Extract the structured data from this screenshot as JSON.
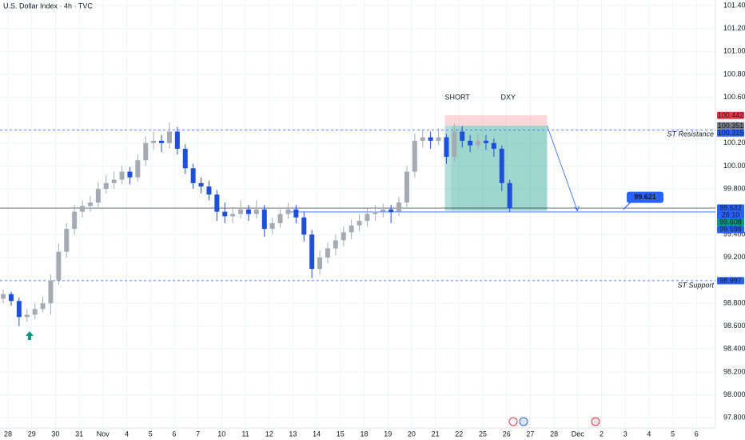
{
  "chart_data": {
    "type": "candlestick",
    "title": "U.S. Dollar Index · 4h · TVC",
    "annotations": [
      {
        "text": "SHORT",
        "color": "#f23645"
      },
      {
        "text": "DXY",
        "color": "#2962ff"
      }
    ],
    "up_color": "#a7aab3",
    "down_color": "#1e4fd8",
    "grid": true,
    "ylim": [
      97.71,
      101.45
    ],
    "yticks": [
      {
        "value": 101.4,
        "label": "101.400"
      },
      {
        "value": 101.2,
        "label": "101.200"
      },
      {
        "value": 101.0,
        "label": "101.000"
      },
      {
        "value": 100.8,
        "label": "100.800"
      },
      {
        "value": 100.6,
        "label": "100.600"
      },
      {
        "value": 100.2,
        "label": "100.200"
      },
      {
        "value": 100.0,
        "label": "100.000"
      },
      {
        "value": 99.8,
        "label": "99.800"
      },
      {
        "value": 99.4,
        "label": "99.400"
      },
      {
        "value": 99.2,
        "label": "99.200"
      },
      {
        "value": 98.8,
        "label": "98.800"
      },
      {
        "value": 98.6,
        "label": "98.600"
      },
      {
        "value": 98.4,
        "label": "98.400"
      },
      {
        "value": 98.2,
        "label": "98.200"
      },
      {
        "value": 98.0,
        "label": "98.000"
      },
      {
        "value": 97.8,
        "label": "97.800"
      }
    ],
    "categories": [
      "28",
      "29",
      "30",
      "31",
      "Nov",
      "4",
      "5",
      "6",
      "7",
      "10",
      "11",
      "12",
      "13",
      "14",
      "15",
      "18",
      "19",
      "20",
      "21",
      "22",
      "25",
      "26",
      "27",
      "28",
      "Dec",
      "2",
      "3",
      "4",
      "5",
      "6"
    ],
    "candles": [
      [
        98.84,
        98.92,
        98.8,
        98.88
      ],
      [
        98.88,
        98.9,
        98.78,
        98.82
      ],
      [
        98.82,
        98.85,
        98.6,
        98.68
      ],
      [
        98.68,
        98.75,
        98.64,
        98.7
      ],
      [
        98.7,
        98.8,
        98.66,
        98.75
      ],
      [
        98.75,
        98.86,
        98.72,
        98.8
      ],
      [
        98.8,
        99.05,
        98.7,
        99.0
      ],
      [
        99.0,
        99.32,
        98.96,
        99.25
      ],
      [
        99.25,
        99.5,
        99.2,
        99.45
      ],
      [
        99.45,
        99.66,
        99.4,
        99.6
      ],
      [
        99.6,
        99.7,
        99.55,
        99.65
      ],
      [
        99.65,
        99.74,
        99.6,
        99.68
      ],
      [
        99.68,
        99.86,
        99.64,
        99.8
      ],
      [
        99.8,
        99.92,
        99.76,
        99.85
      ],
      [
        99.85,
        99.95,
        99.8,
        99.88
      ],
      [
        99.88,
        100.0,
        99.84,
        99.95
      ],
      [
        99.95,
        99.99,
        99.84,
        99.9
      ],
      [
        99.9,
        100.1,
        99.86,
        100.05
      ],
      [
        100.05,
        100.26,
        100.0,
        100.2
      ],
      [
        100.2,
        100.3,
        100.14,
        100.22
      ],
      [
        100.22,
        100.27,
        100.12,
        100.2
      ],
      [
        100.2,
        100.38,
        100.15,
        100.3
      ],
      [
        100.3,
        100.34,
        100.1,
        100.15
      ],
      [
        100.15,
        100.19,
        99.93,
        99.98
      ],
      [
        99.98,
        100.02,
        99.8,
        99.85
      ],
      [
        99.85,
        99.9,
        99.76,
        99.82
      ],
      [
        99.82,
        99.87,
        99.7,
        99.75
      ],
      [
        99.75,
        99.79,
        99.52,
        99.6
      ],
      [
        99.6,
        99.68,
        99.5,
        99.56
      ],
      [
        99.56,
        99.64,
        99.5,
        99.58
      ],
      [
        99.58,
        99.7,
        99.54,
        99.62
      ],
      [
        99.62,
        99.66,
        99.52,
        99.58
      ],
      [
        99.58,
        99.7,
        99.54,
        99.62
      ],
      [
        99.62,
        99.66,
        99.38,
        99.45
      ],
      [
        99.45,
        99.55,
        99.4,
        99.5
      ],
      [
        99.5,
        99.62,
        99.46,
        99.58
      ],
      [
        99.58,
        99.68,
        99.54,
        99.62
      ],
      [
        99.62,
        99.66,
        99.5,
        99.55
      ],
      [
        99.55,
        99.6,
        99.34,
        99.4
      ],
      [
        99.4,
        99.44,
        99.02,
        99.1
      ],
      [
        99.1,
        99.26,
        99.05,
        99.2
      ],
      [
        99.2,
        99.33,
        99.15,
        99.28
      ],
      [
        99.28,
        99.4,
        99.22,
        99.35
      ],
      [
        99.35,
        99.47,
        99.3,
        99.42
      ],
      [
        99.42,
        99.53,
        99.36,
        99.48
      ],
      [
        99.48,
        99.58,
        99.43,
        99.52
      ],
      [
        99.52,
        99.63,
        99.47,
        99.58
      ],
      [
        99.58,
        99.66,
        99.52,
        99.6
      ],
      [
        99.6,
        99.67,
        99.55,
        99.62
      ],
      [
        99.62,
        99.66,
        99.5,
        99.6
      ],
      [
        99.6,
        99.73,
        99.56,
        99.68
      ],
      [
        99.68,
        100.0,
        99.64,
        99.95
      ],
      [
        99.95,
        100.28,
        99.9,
        100.22
      ],
      [
        100.22,
        100.32,
        100.16,
        100.25
      ],
      [
        100.25,
        100.3,
        100.15,
        100.22
      ],
      [
        100.22,
        100.33,
        100.18,
        100.25
      ],
      [
        100.25,
        100.28,
        100.02,
        100.08
      ],
      [
        100.08,
        100.37,
        100.04,
        100.3
      ],
      [
        100.3,
        100.35,
        100.16,
        100.22
      ],
      [
        100.22,
        100.27,
        100.12,
        100.18
      ],
      [
        100.18,
        100.28,
        100.14,
        100.22
      ],
      [
        100.22,
        100.27,
        100.14,
        100.2
      ],
      [
        100.2,
        100.24,
        100.08,
        100.15
      ],
      [
        100.15,
        100.18,
        99.78,
        99.85
      ],
      [
        99.85,
        99.88,
        99.6,
        99.63
      ]
    ],
    "levels": [
      {
        "name": "ST Resistance",
        "value": 100.315,
        "color": "#f23645"
      },
      {
        "name": "ST Support",
        "value": 98.997,
        "color": "#089981"
      }
    ],
    "position": {
      "stop": 100.442,
      "entry": 100.351,
      "target": 99.608
    },
    "target_callout": {
      "value": 99.621,
      "label": "99.621"
    },
    "price_labels": [
      {
        "value": 100.442,
        "label": "100.442",
        "color": "#f23645"
      },
      {
        "value": 100.351,
        "label": "100.351",
        "color": "#787b86"
      },
      {
        "value": 100.315,
        "label": "100.315",
        "color": "#2962ff"
      },
      {
        "value": 99.632,
        "label": "99.632",
        "color": "#2962ff",
        "countdown": "26:10"
      },
      {
        "value": 99.608,
        "label": "99.608",
        "color": "#089981"
      },
      {
        "value": 99.598,
        "label": "99.598",
        "color": "#2962ff"
      },
      {
        "value": 98.997,
        "label": "98.997",
        "color": "#2962ff"
      }
    ]
  }
}
